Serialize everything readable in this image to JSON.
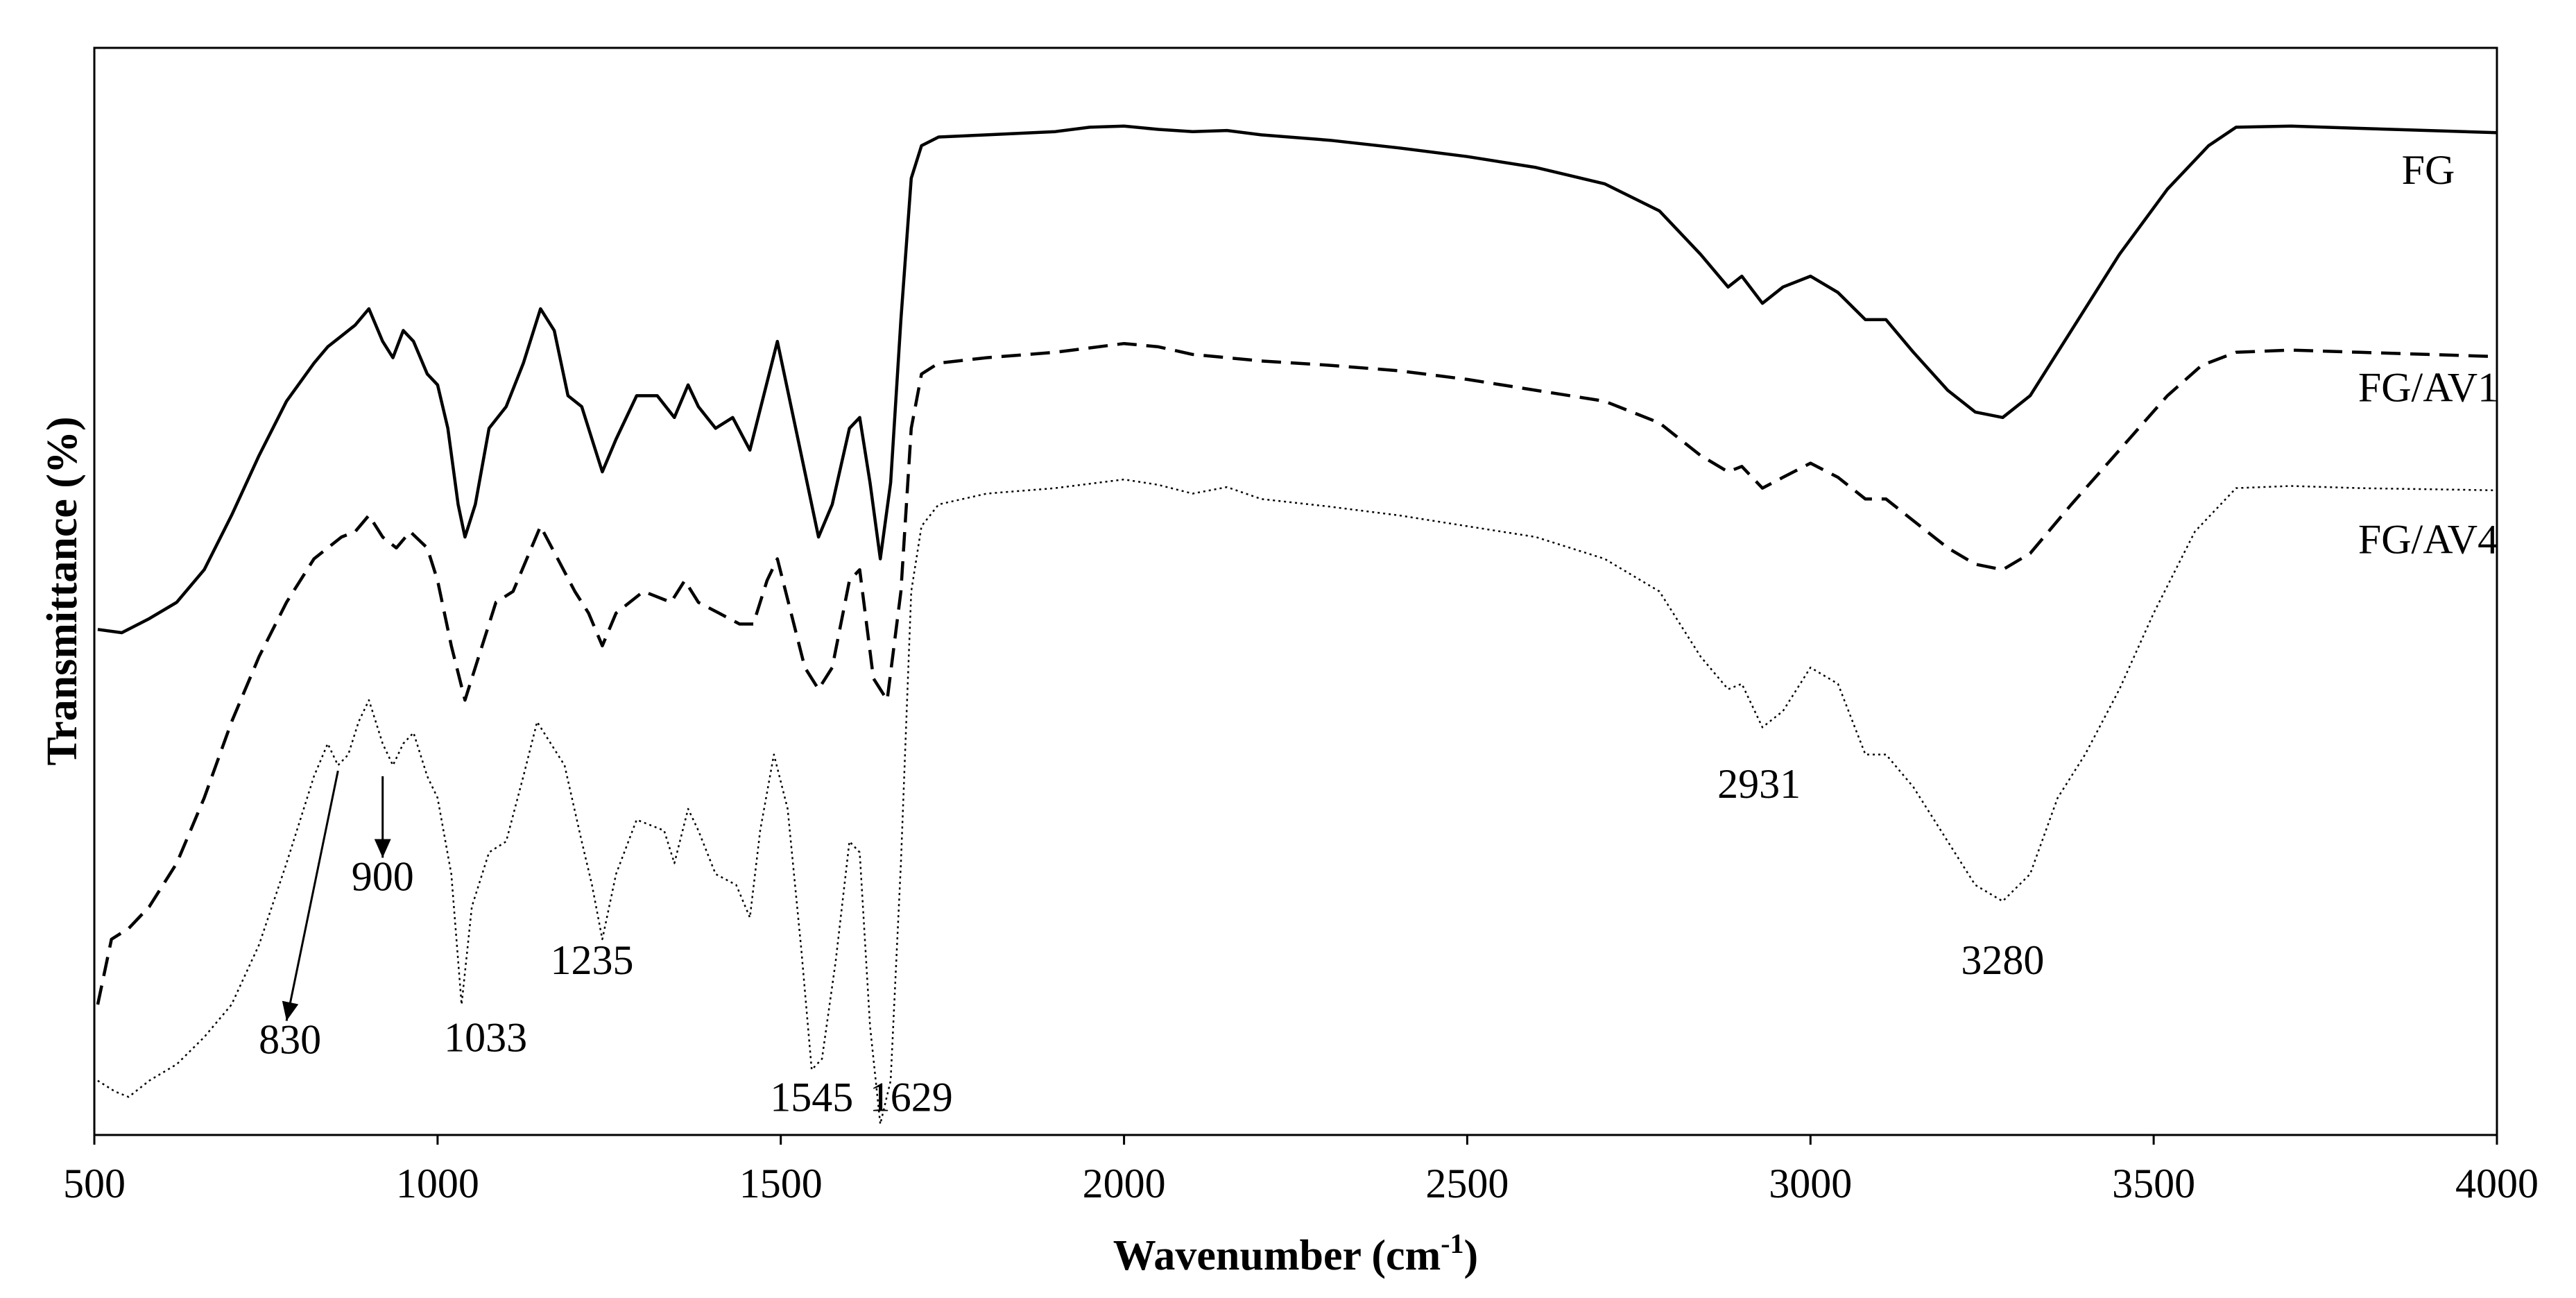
{
  "chart_data": {
    "type": "line",
    "title": "",
    "xlabel": "Wavenumber (cm",
    "xlabel_sup": "-1",
    "xlabel_close": ")",
    "ylabel": "Transmittance (%)",
    "xlim": [
      500,
      4000
    ],
    "ylim": [
      0,
      100
    ],
    "xticks": [
      500,
      1000,
      1500,
      2000,
      2500,
      3000,
      3500,
      4000
    ],
    "grid": false,
    "legend": "none",
    "series": [
      {
        "name": "FG",
        "style": "solid",
        "label_at": [
          3900,
          87.5
        ],
        "points": [
          [
            505,
            46.5
          ],
          [
            540,
            46.2
          ],
          [
            580,
            47.5
          ],
          [
            620,
            49
          ],
          [
            660,
            52
          ],
          [
            700,
            57
          ],
          [
            740,
            62.5
          ],
          [
            780,
            67.5
          ],
          [
            820,
            71
          ],
          [
            840,
            72.5
          ],
          [
            860,
            73.5
          ],
          [
            880,
            74.5
          ],
          [
            900,
            76
          ],
          [
            920,
            73
          ],
          [
            935,
            71.5
          ],
          [
            950,
            74
          ],
          [
            965,
            73
          ],
          [
            985,
            70
          ],
          [
            1000,
            69
          ],
          [
            1015,
            65
          ],
          [
            1030,
            58
          ],
          [
            1040,
            55
          ],
          [
            1055,
            58
          ],
          [
            1075,
            65
          ],
          [
            1100,
            67
          ],
          [
            1125,
            71
          ],
          [
            1150,
            76
          ],
          [
            1170,
            74
          ],
          [
            1190,
            68
          ],
          [
            1210,
            67
          ],
          [
            1225,
            64
          ],
          [
            1240,
            61
          ],
          [
            1260,
            64
          ],
          [
            1290,
            68
          ],
          [
            1320,
            68
          ],
          [
            1345,
            66
          ],
          [
            1365,
            69
          ],
          [
            1380,
            67
          ],
          [
            1405,
            65
          ],
          [
            1430,
            66
          ],
          [
            1455,
            63
          ],
          [
            1475,
            68
          ],
          [
            1495,
            73
          ],
          [
            1515,
            67
          ],
          [
            1535,
            61
          ],
          [
            1555,
            55
          ],
          [
            1575,
            58
          ],
          [
            1600,
            65
          ],
          [
            1615,
            66
          ],
          [
            1630,
            60
          ],
          [
            1645,
            53
          ],
          [
            1660,
            60
          ],
          [
            1675,
            75
          ],
          [
            1690,
            88
          ],
          [
            1705,
            91
          ],
          [
            1730,
            91.8
          ],
          [
            1800,
            92
          ],
          [
            1900,
            92.3
          ],
          [
            1950,
            92.7
          ],
          [
            2000,
            92.8
          ],
          [
            2050,
            92.5
          ],
          [
            2100,
            92.3
          ],
          [
            2150,
            92.4
          ],
          [
            2200,
            92
          ],
          [
            2300,
            91.5
          ],
          [
            2400,
            90.8
          ],
          [
            2500,
            90
          ],
          [
            2600,
            89
          ],
          [
            2700,
            87.5
          ],
          [
            2780,
            85
          ],
          [
            2840,
            81
          ],
          [
            2880,
            78
          ],
          [
            2900,
            79
          ],
          [
            2930,
            76.5
          ],
          [
            2960,
            78
          ],
          [
            3000,
            79
          ],
          [
            3040,
            77.5
          ],
          [
            3080,
            75
          ],
          [
            3110,
            75
          ],
          [
            3150,
            72
          ],
          [
            3200,
            68.5
          ],
          [
            3240,
            66.5
          ],
          [
            3280,
            66
          ],
          [
            3320,
            68
          ],
          [
            3380,
            74
          ],
          [
            3450,
            81
          ],
          [
            3520,
            87
          ],
          [
            3580,
            91
          ],
          [
            3620,
            92.7
          ],
          [
            3700,
            92.8
          ],
          [
            3800,
            92.6
          ],
          [
            3900,
            92.4
          ],
          [
            4000,
            92.2
          ]
        ]
      },
      {
        "name": "FG/AV1",
        "style": "dashed",
        "label_at": [
          3900,
          67.5
        ],
        "points": [
          [
            505,
            12
          ],
          [
            525,
            18
          ],
          [
            550,
            19
          ],
          [
            580,
            21
          ],
          [
            620,
            25
          ],
          [
            660,
            31
          ],
          [
            700,
            38
          ],
          [
            740,
            44
          ],
          [
            780,
            49
          ],
          [
            820,
            53
          ],
          [
            860,
            55
          ],
          [
            880,
            55.5
          ],
          [
            900,
            57
          ],
          [
            920,
            55
          ],
          [
            940,
            54
          ],
          [
            960,
            55.5
          ],
          [
            985,
            54
          ],
          [
            1000,
            51
          ],
          [
            1020,
            45
          ],
          [
            1040,
            40
          ],
          [
            1060,
            44
          ],
          [
            1085,
            49
          ],
          [
            1110,
            50
          ],
          [
            1130,
            53
          ],
          [
            1150,
            56
          ],
          [
            1175,
            53
          ],
          [
            1200,
            50
          ],
          [
            1220,
            48
          ],
          [
            1240,
            45
          ],
          [
            1260,
            48
          ],
          [
            1300,
            50
          ],
          [
            1340,
            49
          ],
          [
            1360,
            51
          ],
          [
            1380,
            49
          ],
          [
            1410,
            48
          ],
          [
            1440,
            47
          ],
          [
            1460,
            47
          ],
          [
            1480,
            51
          ],
          [
            1495,
            53
          ],
          [
            1515,
            48
          ],
          [
            1535,
            43
          ],
          [
            1555,
            41
          ],
          [
            1575,
            43
          ],
          [
            1600,
            51
          ],
          [
            1615,
            52
          ],
          [
            1635,
            42
          ],
          [
            1655,
            40
          ],
          [
            1675,
            50
          ],
          [
            1690,
            65
          ],
          [
            1705,
            70
          ],
          [
            1730,
            71
          ],
          [
            1800,
            71.5
          ],
          [
            1900,
            72
          ],
          [
            2000,
            72.8
          ],
          [
            2050,
            72.5
          ],
          [
            2100,
            71.8
          ],
          [
            2150,
            71.5
          ],
          [
            2200,
            71.2
          ],
          [
            2300,
            70.8
          ],
          [
            2400,
            70.3
          ],
          [
            2500,
            69.5
          ],
          [
            2600,
            68.5
          ],
          [
            2700,
            67.5
          ],
          [
            2780,
            65.5
          ],
          [
            2840,
            62.5
          ],
          [
            2880,
            61
          ],
          [
            2900,
            61.5
          ],
          [
            2930,
            59.5
          ],
          [
            2960,
            60.5
          ],
          [
            3000,
            61.8
          ],
          [
            3040,
            60.5
          ],
          [
            3080,
            58.5
          ],
          [
            3110,
            58.5
          ],
          [
            3150,
            56.5
          ],
          [
            3200,
            54
          ],
          [
            3240,
            52.5
          ],
          [
            3280,
            52
          ],
          [
            3320,
            53.5
          ],
          [
            3380,
            58
          ],
          [
            3450,
            63
          ],
          [
            3520,
            68
          ],
          [
            3570,
            70.8
          ],
          [
            3620,
            72
          ],
          [
            3700,
            72.2
          ],
          [
            3800,
            72
          ],
          [
            3900,
            71.8
          ],
          [
            4000,
            71.6
          ]
        ]
      },
      {
        "name": "FG/AV4",
        "style": "dotted",
        "label_at": [
          3900,
          53.5
        ],
        "points": [
          [
            505,
            5
          ],
          [
            530,
            4
          ],
          [
            550,
            3.5
          ],
          [
            580,
            5
          ],
          [
            620,
            6.5
          ],
          [
            660,
            9
          ],
          [
            700,
            12
          ],
          [
            740,
            17.5
          ],
          [
            780,
            25
          ],
          [
            820,
            33
          ],
          [
            840,
            36
          ],
          [
            855,
            34
          ],
          [
            870,
            35
          ],
          [
            885,
            38
          ],
          [
            900,
            40
          ],
          [
            920,
            36
          ],
          [
            935,
            34
          ],
          [
            950,
            36
          ],
          [
            965,
            37
          ],
          [
            985,
            33
          ],
          [
            1000,
            31
          ],
          [
            1020,
            24
          ],
          [
            1035,
            12
          ],
          [
            1050,
            21
          ],
          [
            1075,
            26
          ],
          [
            1100,
            27
          ],
          [
            1125,
            33
          ],
          [
            1145,
            38
          ],
          [
            1165,
            36
          ],
          [
            1185,
            34
          ],
          [
            1210,
            27
          ],
          [
            1225,
            23
          ],
          [
            1240,
            18
          ],
          [
            1260,
            24
          ],
          [
            1290,
            29
          ],
          [
            1330,
            28
          ],
          [
            1345,
            25
          ],
          [
            1365,
            30
          ],
          [
            1380,
            28
          ],
          [
            1405,
            24
          ],
          [
            1435,
            23
          ],
          [
            1455,
            20
          ],
          [
            1470,
            28
          ],
          [
            1490,
            35
          ],
          [
            1510,
            30
          ],
          [
            1530,
            17
          ],
          [
            1545,
            6
          ],
          [
            1560,
            7
          ],
          [
            1580,
            16
          ],
          [
            1600,
            27
          ],
          [
            1615,
            26
          ],
          [
            1630,
            10
          ],
          [
            1645,
            1
          ],
          [
            1660,
            5
          ],
          [
            1675,
            25
          ],
          [
            1690,
            50
          ],
          [
            1705,
            56
          ],
          [
            1730,
            58
          ],
          [
            1800,
            59
          ],
          [
            1900,
            59.5
          ],
          [
            2000,
            60.3
          ],
          [
            2050,
            59.8
          ],
          [
            2100,
            59
          ],
          [
            2150,
            59.6
          ],
          [
            2200,
            58.5
          ],
          [
            2300,
            57.8
          ],
          [
            2400,
            57
          ],
          [
            2500,
            56
          ],
          [
            2600,
            55
          ],
          [
            2700,
            53
          ],
          [
            2780,
            50
          ],
          [
            2840,
            44
          ],
          [
            2880,
            41
          ],
          [
            2900,
            41.5
          ],
          [
            2930,
            37.5
          ],
          [
            2960,
            39
          ],
          [
            3000,
            43
          ],
          [
            3040,
            41.5
          ],
          [
            3080,
            35
          ],
          [
            3110,
            35
          ],
          [
            3150,
            32
          ],
          [
            3200,
            27
          ],
          [
            3240,
            23
          ],
          [
            3280,
            21.5
          ],
          [
            3320,
            24
          ],
          [
            3360,
            31
          ],
          [
            3400,
            35
          ],
          [
            3450,
            41
          ],
          [
            3500,
            48
          ],
          [
            3560,
            55.5
          ],
          [
            3620,
            59.5
          ],
          [
            3700,
            59.7
          ],
          [
            3800,
            59.5
          ],
          [
            3900,
            59.4
          ],
          [
            4000,
            59.3
          ]
        ]
      }
    ],
    "annotations": [
      {
        "text": "830",
        "at": [
          785,
          7.5
        ]
      },
      {
        "text": "900",
        "at": [
          920,
          22.5
        ]
      },
      {
        "text": "1033",
        "at": [
          1070,
          7.7
        ]
      },
      {
        "text": "1235",
        "at": [
          1225,
          14.8
        ]
      },
      {
        "text": "1545",
        "at": [
          1545,
          2.2
        ]
      },
      {
        "text": "1629",
        "at": [
          1690,
          2.2
        ]
      },
      {
        "text": "2931",
        "at": [
          2925,
          31
        ]
      },
      {
        "text": "3280",
        "at": [
          3280,
          14.8
        ]
      }
    ],
    "arrows": [
      {
        "from": [
          855,
          33.5
        ],
        "to": [
          780,
          10.5
        ]
      },
      {
        "from": [
          920,
          33
        ],
        "to": [
          920,
          25.5
        ]
      }
    ]
  }
}
